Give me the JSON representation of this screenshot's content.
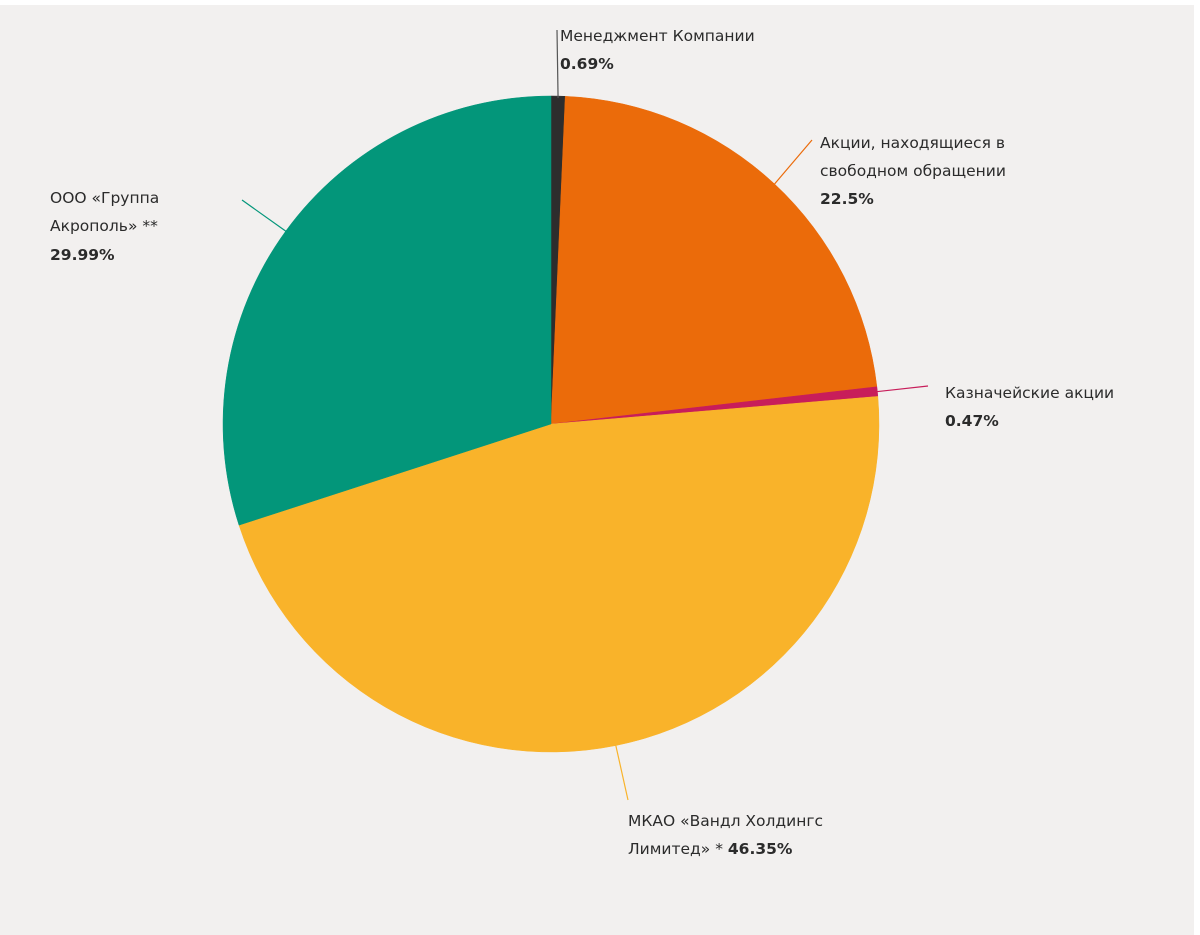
{
  "chart_data": {
    "type": "pie",
    "start_angle_deg": 0,
    "direction": "clockwise",
    "slices": [
      {
        "key": "management",
        "label_lines": [
          "Менеджмент Компании"
        ],
        "value_text": "0.69%",
        "value": 0.69,
        "color": "#2d2d2d",
        "leader_color": "#555555"
      },
      {
        "key": "free_float",
        "label_lines": [
          "Акции, находящиеся в",
          "свободном обращении"
        ],
        "value_text": "22.5%",
        "value": 22.5,
        "color": "#eb6b0a",
        "leader_color": "#eb6b0a"
      },
      {
        "key": "treasury",
        "label_lines": [
          "Казначейские акции"
        ],
        "value_text": "0.47%",
        "value": 0.47,
        "color": "#c81d5a",
        "leader_color": "#c81d5a"
      },
      {
        "key": "vandl",
        "label_lines": [
          "МКАО «Вандл Холдингс"
        ],
        "last_line_text": "Лимитед» * ",
        "value_text": "46.35%",
        "value": 46.35,
        "color": "#f9b32a",
        "leader_color": "#f9b32a"
      },
      {
        "key": "akropol",
        "label_lines": [
          "ООО «Группа",
          "Акрополь» **"
        ],
        "value_text": "29.99%",
        "value": 29.99,
        "color": "#03967a",
        "leader_color": "#03967a"
      }
    ]
  }
}
